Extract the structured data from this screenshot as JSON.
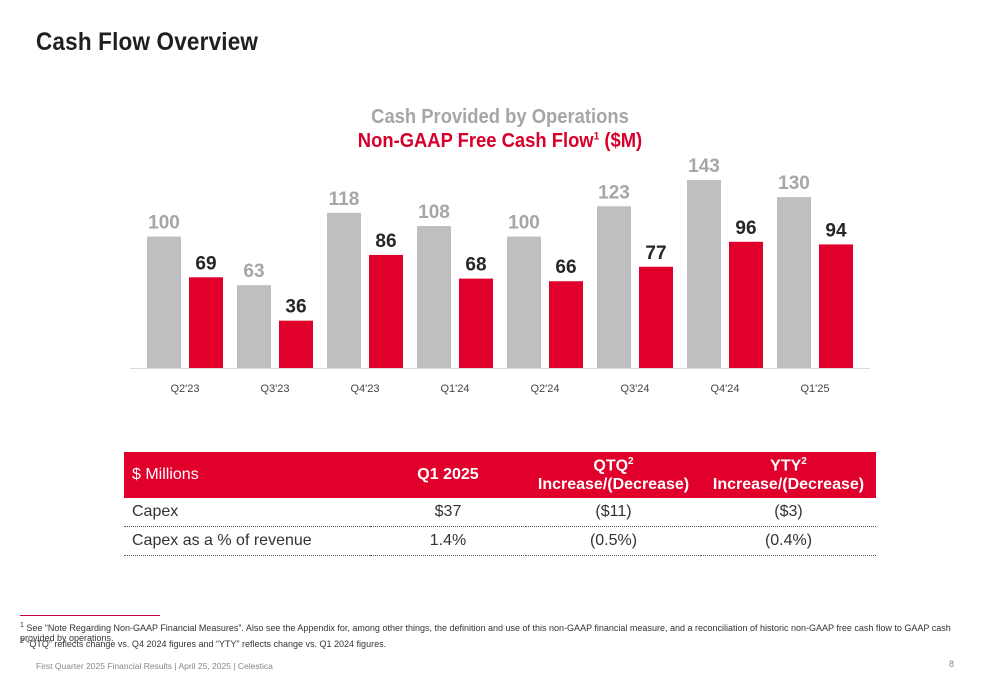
{
  "slide": {
    "title": "Cash Flow Overview"
  },
  "chart_data": {
    "type": "bar",
    "title": "Cash Provided by Operations",
    "subtitle": "Non-GAAP Free Cash Flow",
    "subtitle_sup": "1",
    "subtitle_suffix": " ($M)",
    "categories": [
      "Q2'23",
      "Q3'23",
      "Q4'23",
      "Q1'24",
      "Q2'24",
      "Q3'24",
      "Q4'24",
      "Q1'25"
    ],
    "series": [
      {
        "name": "Cash Provided by Operations",
        "color": "#bfbfbf",
        "label_color": "#a6a6a6",
        "values": [
          100,
          63,
          118,
          108,
          100,
          123,
          143,
          130
        ]
      },
      {
        "name": "Non-GAAP Free Cash Flow",
        "color": "#e0002b",
        "label_color": "#262626",
        "values": [
          69,
          36,
          86,
          68,
          66,
          77,
          96,
          94
        ]
      }
    ],
    "ylim": [
      0,
      143
    ],
    "grid": false,
    "xlabel": "",
    "ylabel": ""
  },
  "table": {
    "header": {
      "col0": "$ Millions",
      "col1": "Q1 2025",
      "col2_top": "QTQ",
      "col2_sup": "2",
      "col2_bottom": "Increase/(Decrease)",
      "col3_top": "YTY",
      "col3_sup": "2",
      "col3_bottom": "Increase/(Decrease)"
    },
    "rows": [
      {
        "label": "Capex",
        "q1": "$37",
        "qtq": "($11)",
        "yty": "($3)"
      },
      {
        "label": "Capex as a % of revenue",
        "q1": "1.4%",
        "qtq": "(0.5%)",
        "yty": "(0.4%)"
      }
    ]
  },
  "footnotes": {
    "fn1_sup": "1",
    "fn1": " See “Note Regarding Non-GAAP Financial Measures”. Also see the Appendix for, among other things, the definition and use of this non-GAAP financial measure, and a reconciliation of historic non-GAAP free cash flow to GAAP cash provided by operations.",
    "fn2_sup": "2",
    "fn2": " “QTQ” reflects change vs. Q4 2024 figures and “YTY” reflects change vs. Q1 2024 figures."
  },
  "footer": {
    "text": "First Quarter 2025 Financial Results | April 25, 2025 | Celestica",
    "page": "8"
  }
}
